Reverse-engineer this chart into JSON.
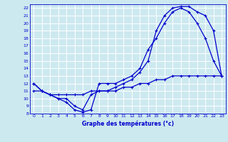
{
  "xlabel": "Graphe des températures (°c)",
  "bg_color": "#cde9f0",
  "line_color": "#0000cc",
  "grid_color": "#ffffff",
  "xlim": [
    -0.5,
    23.5
  ],
  "ylim": [
    8,
    22.5
  ],
  "xticks": [
    0,
    1,
    2,
    3,
    4,
    5,
    6,
    7,
    8,
    9,
    10,
    11,
    12,
    13,
    14,
    15,
    16,
    17,
    18,
    19,
    20,
    21,
    22,
    23
  ],
  "yticks": [
    8,
    9,
    10,
    11,
    12,
    13,
    14,
    15,
    16,
    17,
    18,
    19,
    20,
    21,
    22
  ],
  "curve1_x": [
    0,
    1,
    2,
    3,
    4,
    5,
    6,
    7,
    8,
    9,
    10,
    11,
    12,
    13,
    14,
    15,
    16,
    17,
    18,
    19,
    20,
    21,
    22,
    23
  ],
  "curve1_y": [
    12,
    11,
    10.5,
    10,
    9.5,
    8.5,
    8.2,
    8.5,
    12,
    12,
    12,
    12.5,
    13,
    14,
    16.5,
    18,
    20,
    21.5,
    22,
    21.5,
    20,
    18,
    15,
    13
  ],
  "curve2_x": [
    0,
    1,
    2,
    3,
    4,
    5,
    6,
    7,
    8,
    9,
    10,
    11,
    12,
    13,
    14,
    15,
    16,
    17,
    18,
    19,
    20,
    21,
    22,
    23
  ],
  "curve2_y": [
    12,
    11,
    10.5,
    10,
    10,
    9,
    8.5,
    10.5,
    11,
    11,
    11.5,
    12,
    12.5,
    13.5,
    15,
    19,
    21,
    22,
    22.2,
    22.2,
    21.5,
    21,
    19,
    13
  ],
  "curve3_x": [
    0,
    1,
    2,
    3,
    4,
    5,
    6,
    7,
    8,
    9,
    10,
    11,
    12,
    13,
    14,
    15,
    16,
    17,
    18,
    19,
    20,
    21,
    22,
    23
  ],
  "curve3_y": [
    11,
    11,
    10.5,
    10.5,
    10.5,
    10.5,
    10.5,
    11,
    11,
    11,
    11,
    11.5,
    11.5,
    12,
    12,
    12.5,
    12.5,
    13,
    13,
    13,
    13,
    13,
    13,
    13
  ]
}
